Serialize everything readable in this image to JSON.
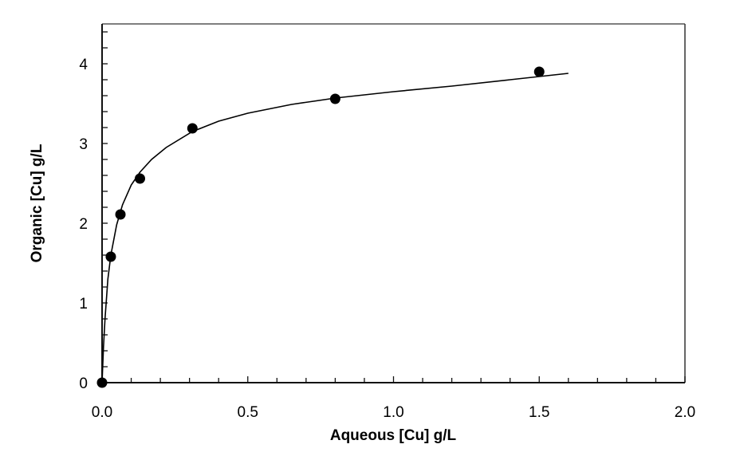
{
  "chart_data": {
    "type": "scatter",
    "title": "",
    "xlabel": "Aqueous [Cu] g/L",
    "ylabel": "Organic [Cu] g/L",
    "xlim": [
      0,
      2.0
    ],
    "ylim": [
      0,
      4.5
    ],
    "x_ticks": [
      "0.0",
      "0.5",
      "1.0",
      "1.5",
      "2.0"
    ],
    "x_tick_values": [
      0,
      0.5,
      1.0,
      1.5,
      2.0
    ],
    "x_minor_step": 0.1,
    "y_ticks": [
      "0",
      "1",
      "2",
      "3",
      "4"
    ],
    "y_tick_values": [
      0,
      1,
      2,
      3,
      4
    ],
    "y_minor_step": 0.2,
    "grid": false,
    "legend": null,
    "series": [
      {
        "name": "Data points",
        "kind": "scatter",
        "marker": "filled-circle",
        "color": "#000000",
        "x": [
          0.0,
          0.03,
          0.063,
          0.13,
          0.31,
          0.8,
          1.5
        ],
        "y": [
          0.0,
          1.58,
          2.11,
          2.56,
          3.19,
          3.56,
          3.9
        ]
      },
      {
        "name": "Fitted isotherm",
        "kind": "line",
        "color": "#000000",
        "x_range": [
          0,
          1.6
        ],
        "model": "langmuir-like",
        "x": [
          0,
          0.005,
          0.01,
          0.02,
          0.03,
          0.05,
          0.07,
          0.1,
          0.13,
          0.17,
          0.22,
          0.31,
          0.4,
          0.5,
          0.65,
          0.8,
          1.0,
          1.2,
          1.4,
          1.5,
          1.6
        ],
        "y": [
          0,
          0.45,
          0.8,
          1.3,
          1.6,
          1.98,
          2.23,
          2.48,
          2.64,
          2.8,
          2.95,
          3.15,
          3.28,
          3.38,
          3.49,
          3.57,
          3.65,
          3.72,
          3.8,
          3.84,
          3.88
        ]
      }
    ]
  }
}
